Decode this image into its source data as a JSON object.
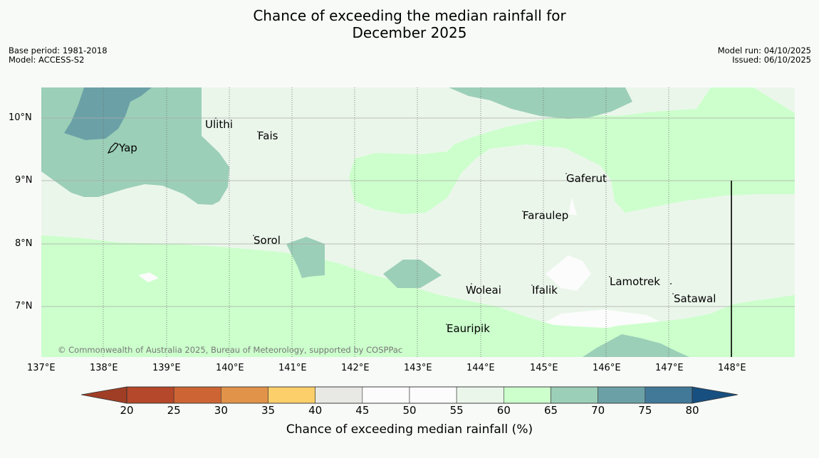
{
  "title": {
    "line1": "Chance of exceeding the median rainfall for",
    "line2": "December 2025"
  },
  "meta": {
    "base_period": "Base period: 1981-2018",
    "model": "Model: ACCESS-S2",
    "model_run": "Model run: 04/10/2025",
    "issued": "Issued: 06/10/2025"
  },
  "map": {
    "lon_labels": [
      "137°E",
      "138°E",
      "139°E",
      "140°E",
      "141°E",
      "142°E",
      "143°E",
      "144°E",
      "145°E",
      "146°E",
      "147°E",
      "148°E"
    ],
    "lat_labels": [
      "10°N",
      "9°N",
      "8°N",
      "7°N"
    ],
    "places": [
      "Ulithi",
      "Fais",
      "Yap",
      "Gaferut",
      "Faraulep",
      "Sorol",
      "Lamotrek",
      "Woleai",
      "Ifalik",
      "Satawal",
      "Eauripik"
    ],
    "copyright": "© Commonwealth of Australia 2025, Bureau of Meteorology, supported by COSPPac"
  },
  "colorbar": {
    "ticks": [
      "20",
      "25",
      "30",
      "35",
      "40",
      "45",
      "50",
      "55",
      "60",
      "65",
      "70",
      "75",
      "80"
    ],
    "colors": [
      "#b5472a",
      "#cd6433",
      "#e1934a",
      "#fdcf6a",
      "#e8e9e4",
      "#fbfcfb",
      "#fbfcfb",
      "#ebf6eb",
      "#ccffcc",
      "#9ccfb8",
      "#6ba1a6",
      "#427898"
    ],
    "under_color": "#a03e25",
    "over_color": "#174f80",
    "label": "Chance of exceeding median rainfall (%)"
  },
  "colors": {
    "background": "#f8faf8",
    "band_45_55": "#fbfcfb",
    "band_55_60": "#ebf6eb",
    "band_60_65": "#ccffcc",
    "band_65_70": "#9ccfb8",
    "band_70_75": "#6ba1a6"
  }
}
